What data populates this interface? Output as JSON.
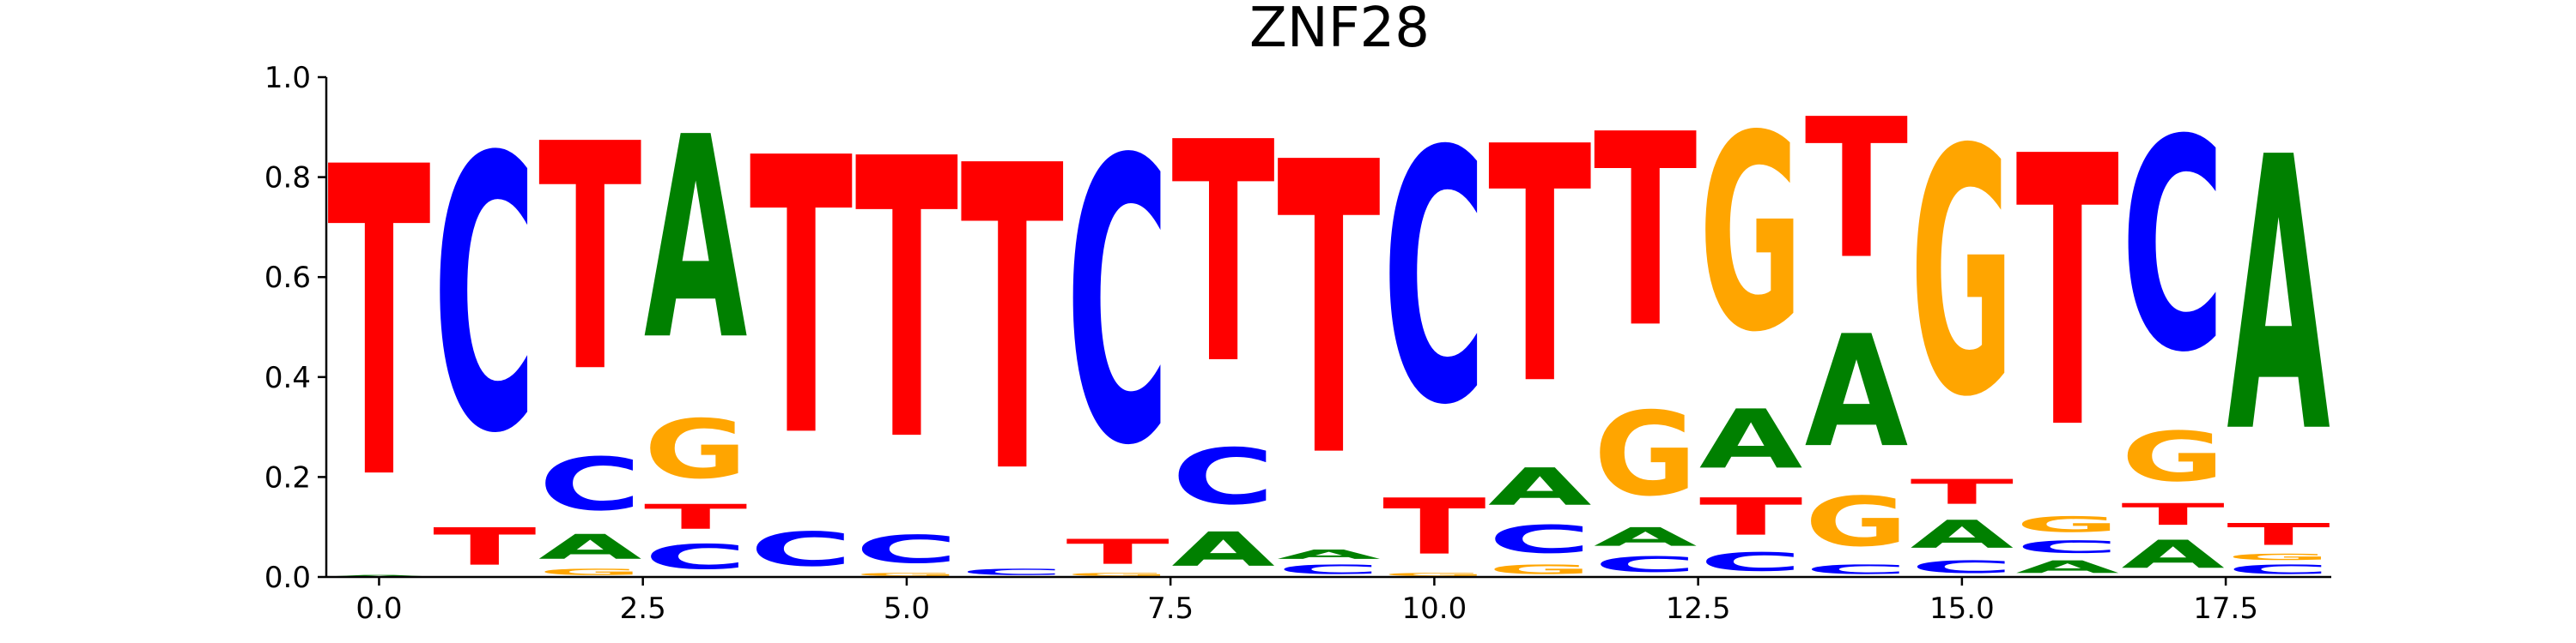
{
  "chart_data": {
    "type": "sequence-logo",
    "title": "ZNF28",
    "xlabel": "",
    "ylabel": "",
    "xlim": [
      -0.5,
      18.5
    ],
    "ylim": [
      0,
      1
    ],
    "x_ticks": [
      "0.0",
      "2.5",
      "5.0",
      "7.5",
      "10.0",
      "12.5",
      "15.0",
      "17.5"
    ],
    "y_ticks": [
      "0.0",
      "0.2",
      "0.4",
      "0.6",
      "0.8",
      "1.0"
    ],
    "x_tick_values": [
      0,
      2.5,
      5,
      7.5,
      10,
      12.5,
      15,
      17.5
    ],
    "y_tick_values": [
      0,
      0.2,
      0.4,
      0.6,
      0.8,
      1.0
    ],
    "colors": {
      "A": "#008000",
      "C": "#0000ff",
      "G": "#ffa500",
      "T": "#ff0000"
    },
    "positions": [
      {
        "x": 0,
        "letters": [
          {
            "base": "A",
            "value": 0.005
          },
          {
            "base": "T",
            "value": 0.995
          }
        ]
      },
      {
        "x": 1,
        "letters": [
          {
            "base": "T",
            "value": 0.12
          },
          {
            "base": "C",
            "value": 0.88
          }
        ]
      },
      {
        "x": 2,
        "letters": [
          {
            "base": "G",
            "value": 0.02
          },
          {
            "base": "A",
            "value": 0.08
          },
          {
            "base": "C",
            "value": 0.17
          },
          {
            "base": "T",
            "value": 0.73
          }
        ]
      },
      {
        "x": 3,
        "letters": [
          {
            "base": "C",
            "value": 0.08
          },
          {
            "base": "T",
            "value": 0.08
          },
          {
            "base": "G",
            "value": 0.19
          },
          {
            "base": "A",
            "value": 0.65
          }
        ]
      },
      {
        "x": 4,
        "letters": [
          {
            "base": "C",
            "value": 0.11
          },
          {
            "base": "T",
            "value": 0.89
          }
        ]
      },
      {
        "x": 5,
        "letters": [
          {
            "base": "G",
            "value": 0.01
          },
          {
            "base": "C",
            "value": 0.09
          },
          {
            "base": "T",
            "value": 0.9
          }
        ]
      },
      {
        "x": 6,
        "letters": [
          {
            "base": "C",
            "value": 0.02
          },
          {
            "base": "T",
            "value": 0.98
          }
        ]
      },
      {
        "x": 7,
        "letters": [
          {
            "base": "G",
            "value": 0.01
          },
          {
            "base": "T",
            "value": 0.08
          },
          {
            "base": "C",
            "value": 0.91
          }
        ]
      },
      {
        "x": 8,
        "letters": [
          {
            "base": "A",
            "value": 0.11
          },
          {
            "base": "C",
            "value": 0.18
          },
          {
            "base": "T",
            "value": 0.71
          }
        ]
      },
      {
        "x": 9,
        "letters": [
          {
            "base": "C",
            "value": 0.03
          },
          {
            "base": "A",
            "value": 0.03
          },
          {
            "base": "T",
            "value": 0.94
          }
        ]
      },
      {
        "x": 10,
        "letters": [
          {
            "base": "G",
            "value": 0.01
          },
          {
            "base": "T",
            "value": 0.18
          },
          {
            "base": "C",
            "value": 0.81
          }
        ]
      },
      {
        "x": 11,
        "letters": [
          {
            "base": "G",
            "value": 0.03
          },
          {
            "base": "C",
            "value": 0.09
          },
          {
            "base": "A",
            "value": 0.12
          },
          {
            "base": "T",
            "value": 0.76
          }
        ]
      },
      {
        "x": 12,
        "letters": [
          {
            "base": "C",
            "value": 0.05
          },
          {
            "base": "A",
            "value": 0.06
          },
          {
            "base": "G",
            "value": 0.27
          },
          {
            "base": "T",
            "value": 0.62
          }
        ]
      },
      {
        "x": 13,
        "letters": [
          {
            "base": "C",
            "value": 0.06
          },
          {
            "base": "T",
            "value": 0.12
          },
          {
            "base": "A",
            "value": 0.19
          },
          {
            "base": "G",
            "value": 0.63
          }
        ]
      },
      {
        "x": 14,
        "letters": [
          {
            "base": "C",
            "value": 0.03
          },
          {
            "base": "G",
            "value": 0.16
          },
          {
            "base": "A",
            "value": 0.36
          },
          {
            "base": "T",
            "value": 0.45
          }
        ]
      },
      {
        "x": 15,
        "letters": [
          {
            "base": "C",
            "value": 0.04
          },
          {
            "base": "A",
            "value": 0.09
          },
          {
            "base": "T",
            "value": 0.08
          },
          {
            "base": "G",
            "value": 0.79
          }
        ]
      },
      {
        "x": 16,
        "letters": [
          {
            "base": "A",
            "value": 0.04
          },
          {
            "base": "C",
            "value": 0.04
          },
          {
            "base": "G",
            "value": 0.05
          },
          {
            "base": "T",
            "value": 0.87
          }
        ]
      },
      {
        "x": 17,
        "letters": [
          {
            "base": "A",
            "value": 0.09
          },
          {
            "base": "T",
            "value": 0.07
          },
          {
            "base": "G",
            "value": 0.16
          },
          {
            "base": "C",
            "value": 0.68
          }
        ]
      },
      {
        "x": 18,
        "letters": [
          {
            "base": "C",
            "value": 0.03
          },
          {
            "base": "G",
            "value": 0.02
          },
          {
            "base": "T",
            "value": 0.07
          },
          {
            "base": "A",
            "value": 0.88
          }
        ]
      }
    ]
  }
}
